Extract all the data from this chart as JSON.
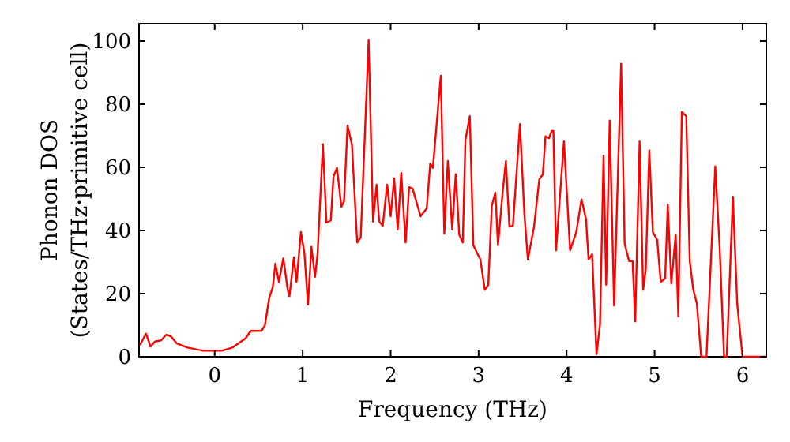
{
  "chart_data": {
    "type": "line",
    "xlabel": "Frequency (THz)",
    "ylabel": "Phonon DOS\n(States/THz·primitive cell)",
    "x": [
      -0.85,
      -0.78,
      -0.73,
      -0.68,
      -0.61,
      -0.55,
      -0.5,
      -0.43,
      -0.31,
      -0.13,
      0.08,
      0.2,
      0.35,
      0.41,
      0.53,
      0.57,
      0.62,
      0.66,
      0.69,
      0.73,
      0.78,
      0.83,
      0.85,
      0.9,
      0.93,
      0.98,
      1.02,
      1.06,
      1.1,
      1.14,
      1.17,
      1.23,
      1.27,
      1.32,
      1.35,
      1.39,
      1.44,
      1.47,
      1.51,
      1.56,
      1.6,
      1.62,
      1.66,
      1.75,
      1.8,
      1.84,
      1.87,
      1.91,
      1.96,
      2.0,
      2.04,
      2.08,
      2.12,
      2.17,
      2.21,
      2.25,
      2.34,
      2.41,
      2.45,
      2.48,
      2.57,
      2.61,
      2.65,
      2.7,
      2.74,
      2.78,
      2.82,
      2.85,
      2.9,
      2.94,
      3.02,
      3.07,
      3.11,
      3.15,
      3.19,
      3.22,
      3.27,
      3.31,
      3.35,
      3.39,
      3.47,
      3.52,
      3.56,
      3.63,
      3.69,
      3.73,
      3.76,
      3.8,
      3.83,
      3.85,
      3.88,
      3.97,
      4.04,
      4.11,
      4.17,
      4.22,
      4.25,
      4.29,
      4.34,
      4.38,
      4.42,
      4.45,
      4.49,
      4.54,
      4.62,
      4.66,
      4.71,
      4.75,
      4.78,
      4.83,
      4.87,
      4.9,
      4.94,
      4.98,
      5.03,
      5.07,
      5.12,
      5.15,
      5.19,
      5.24,
      5.27,
      5.31,
      5.36,
      5.4,
      5.44,
      5.48,
      5.53,
      5.59,
      5.69,
      5.74,
      5.79,
      5.82,
      5.89,
      5.94,
      6.0,
      6.27
    ],
    "series": [
      {
        "color": "#ff0000",
        "values": [
          3.7,
          7.3,
          3.2,
          4.8,
          5.2,
          7,
          6.5,
          4.2,
          2.9,
          1.9,
          1.9,
          2.9,
          5.8,
          8.2,
          8.2,
          9.8,
          18.7,
          22,
          29.5,
          23.7,
          31.2,
          21.2,
          19.2,
          31.5,
          23.7,
          39.5,
          32.8,
          16.5,
          34.8,
          25.3,
          32.8,
          67.3,
          42.5,
          43.2,
          57,
          59.8,
          47.5,
          49.2,
          73.2,
          67.2,
          46.3,
          36.2,
          37.8,
          100.3,
          42.8,
          54.5,
          42.8,
          41.5,
          54.5,
          44.5,
          56.5,
          40.3,
          58.2,
          36.2,
          53.7,
          53.2,
          44.5,
          47,
          61.2,
          59.8,
          89,
          39,
          62,
          40.3,
          57.8,
          38.7,
          36.2,
          68.7,
          76.2,
          35.3,
          30.8,
          21.2,
          22.8,
          47.8,
          52,
          35.3,
          51.2,
          62,
          41.2,
          41.5,
          73.7,
          45.3,
          30.8,
          41.2,
          56.2,
          57.8,
          69.8,
          69.2,
          71.5,
          71.5,
          33.7,
          68.2,
          33.7,
          39.5,
          49.8,
          43.7,
          30.8,
          32.5,
          0.8,
          10.3,
          63.7,
          22.8,
          74.8,
          16.2,
          92.8,
          35.8,
          30.3,
          30.3,
          11.2,
          68.2,
          21.2,
          27.8,
          65.3,
          39.5,
          37,
          23.7,
          24.8,
          48.2,
          23.2,
          38.7,
          12.8,
          77.5,
          76.2,
          30.3,
          21.2,
          17,
          0,
          0,
          60.3,
          34.5,
          0,
          0,
          50.7,
          16.5,
          0,
          0
        ]
      }
    ],
    "xlim": [
      -0.86,
      6.27
    ],
    "ylim": [
      0,
      105.5
    ],
    "xticks": [
      0,
      1,
      2,
      3,
      4,
      5,
      6
    ],
    "yticks": [
      0,
      20,
      40,
      60,
      80,
      100
    ],
    "grid": false,
    "line_style": "solid",
    "marker": "none"
  }
}
